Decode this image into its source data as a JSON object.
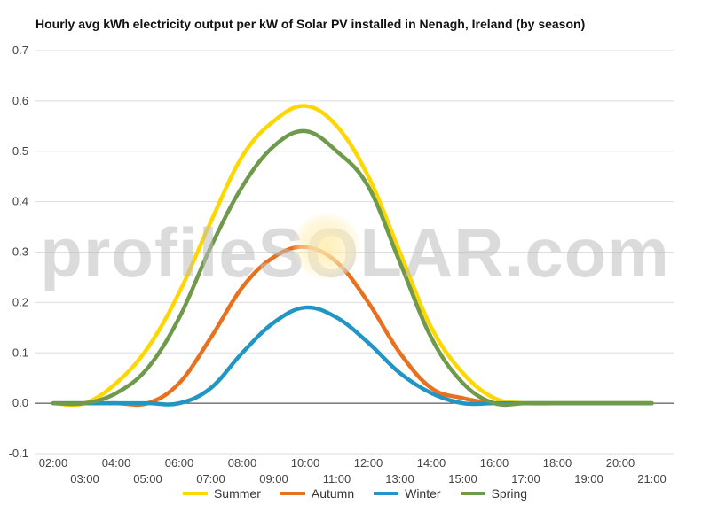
{
  "chart_data": {
    "type": "line",
    "title": "Hourly avg kWh electricity output per kW of Solar PV installed in Nenagh, Ireland (by season)",
    "watermark": "profileSOLAR.com",
    "xlabel": "",
    "ylabel": "",
    "x": [
      "02:00",
      "03:00",
      "04:00",
      "05:00",
      "06:00",
      "07:00",
      "08:00",
      "09:00",
      "10:00",
      "11:00",
      "12:00",
      "13:00",
      "14:00",
      "15:00",
      "16:00",
      "17:00",
      "18:00",
      "19:00",
      "20:00",
      "21:00"
    ],
    "x_tick_labels_row1": [
      "02:00",
      "04:00",
      "06:00",
      "08:00",
      "10:00",
      "12:00",
      "14:00",
      "16:00",
      "18:00",
      "20:00"
    ],
    "x_tick_labels_row2": [
      "03:00",
      "05:00",
      "07:00",
      "09:00",
      "11:00",
      "13:00",
      "15:00",
      "17:00",
      "19:00",
      "21:00"
    ],
    "y_ticks": [
      "-0.1",
      "0.0",
      "0.1",
      "0.2",
      "0.3",
      "0.4",
      "0.5",
      "0.6",
      "0.7"
    ],
    "ylim": [
      -0.1,
      0.7
    ],
    "grid": true,
    "legend_position": "bottom",
    "series": [
      {
        "name": "Summer",
        "color": "#ffd700",
        "values": [
          0.0,
          0.0,
          0.04,
          0.11,
          0.22,
          0.36,
          0.49,
          0.56,
          0.59,
          0.55,
          0.45,
          0.3,
          0.15,
          0.06,
          0.01,
          0.0,
          0.0,
          0.0,
          0.0,
          0.0
        ]
      },
      {
        "name": "Autumn",
        "color": "#e8711f",
        "values": [
          0.0,
          0.0,
          0.0,
          0.0,
          0.04,
          0.13,
          0.23,
          0.29,
          0.31,
          0.28,
          0.2,
          0.1,
          0.03,
          0.01,
          0.0,
          0.0,
          0.0,
          0.0,
          0.0,
          0.0
        ]
      },
      {
        "name": "Winter",
        "color": "#2196c4",
        "values": [
          0.0,
          0.0,
          0.0,
          0.0,
          0.0,
          0.03,
          0.1,
          0.16,
          0.19,
          0.17,
          0.12,
          0.06,
          0.02,
          0.0,
          0.0,
          0.0,
          0.0,
          0.0,
          0.0,
          0.0
        ]
      },
      {
        "name": "Spring",
        "color": "#6f9a4c",
        "values": [
          0.0,
          0.0,
          0.02,
          0.07,
          0.17,
          0.31,
          0.43,
          0.51,
          0.54,
          0.5,
          0.43,
          0.28,
          0.13,
          0.04,
          0.0,
          0.0,
          0.0,
          0.0,
          0.0,
          0.0
        ]
      }
    ]
  }
}
